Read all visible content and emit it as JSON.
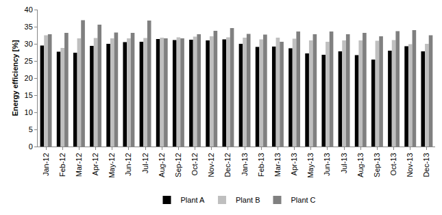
{
  "chart_data": {
    "type": "bar",
    "y_label": "Energy efficiency [%]",
    "categories": [
      "Jan-12",
      "Feb-12",
      "Mar-12",
      "Apr-12",
      "May-12",
      "Jun-12",
      "Jul-12",
      "Aug-12",
      "Sep-12",
      "Oct-12",
      "Nov-12",
      "Dec-12",
      "Jan-13",
      "Feb-13",
      "Mar-13",
      "Apr-13",
      "May-13",
      "Jun-13",
      "Jul-13",
      "Aug-13",
      "Sep-13",
      "Oct-13",
      "Nov-13",
      "Dec-13"
    ],
    "series": [
      {
        "name": "Plant A",
        "color": "#000000",
        "values": [
          29.5,
          27.7,
          27.4,
          29.4,
          30.0,
          30.5,
          30.6,
          31.4,
          31.1,
          31.2,
          31.0,
          31.3,
          30.0,
          29.1,
          29.2,
          28.7,
          27.2,
          26.8,
          27.8,
          26.7,
          25.4,
          28.0,
          29.3,
          27.8
        ]
      },
      {
        "name": "Plant B",
        "color": "#bfbfbf",
        "values": [
          32.5,
          28.8,
          31.6,
          31.7,
          31.6,
          31.6,
          31.7,
          31.8,
          31.9,
          32.1,
          32.2,
          31.9,
          31.8,
          31.3,
          31.8,
          31.5,
          31.0,
          30.6,
          31.0,
          31.0,
          30.9,
          31.1,
          29.9,
          30.0
        ]
      },
      {
        "name": "Plant C",
        "color": "#808080",
        "values": [
          32.8,
          33.2,
          36.9,
          35.6,
          33.3,
          33.2,
          36.8,
          31.6,
          31.6,
          32.8,
          33.8,
          34.6,
          32.9,
          32.7,
          30.6,
          33.6,
          32.8,
          33.6,
          32.8,
          33.2,
          32.2,
          33.7,
          34.0,
          32.5
        ]
      }
    ],
    "ylim": [
      0,
      40
    ],
    "yticks": [
      0,
      5,
      10,
      15,
      20,
      25,
      30,
      35,
      40
    ],
    "grid": false,
    "legend": "bottom"
  }
}
